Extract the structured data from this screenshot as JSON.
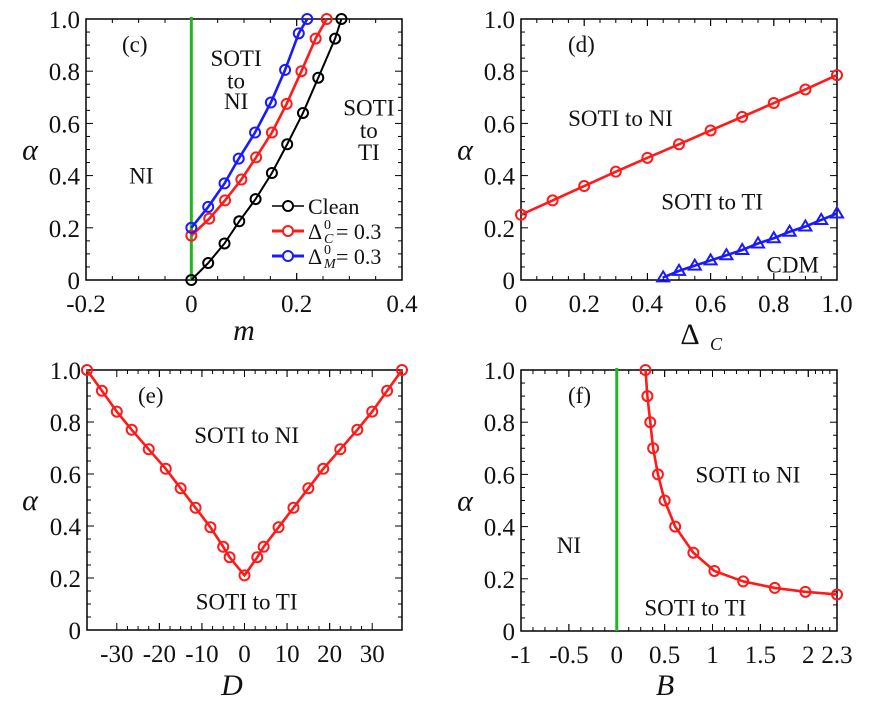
{
  "chart_data": [
    {
      "id": "c",
      "type": "line",
      "panel_label": "(c)",
      "xlabel": "m",
      "ylabel": "α",
      "xlim": [
        -0.2,
        0.4
      ],
      "ylim": [
        0,
        1.0
      ],
      "xticks": [
        -0.2,
        0,
        0.2,
        0.4
      ],
      "xtick_labels": [
        "-0.2",
        "0",
        "0.2",
        "0.4"
      ],
      "yticks": [
        0,
        0.2,
        0.4,
        0.6,
        0.8,
        1.0
      ],
      "ytick_labels": [
        "0",
        "0.2",
        "0.4",
        "0.6",
        "0.8",
        "1.0"
      ],
      "vlines": [
        {
          "x": 0,
          "color": "#22b522"
        }
      ],
      "legend_position": "bottom-right",
      "series": [
        {
          "name": "Clean",
          "legend_main": "Clean",
          "color": "#000000",
          "marker": "circle",
          "x": [
            0,
            0.032,
            0.063,
            0.091,
            0.122,
            0.153,
            0.182,
            0.212,
            0.241,
            0.273,
            0.285
          ],
          "y": [
            0,
            0.065,
            0.14,
            0.225,
            0.31,
            0.41,
            0.52,
            0.64,
            0.775,
            0.925,
            1.0
          ]
        },
        {
          "name": "Δ⁰_C = 0.3",
          "legend_main": "Δ",
          "legend_sup": "0",
          "legend_sub": "C",
          "legend_value": "= 0.3",
          "color": "#ff1a1a",
          "marker": "circle",
          "x": [
            0,
            0.034,
            0.064,
            0.095,
            0.123,
            0.153,
            0.181,
            0.209,
            0.236,
            0.257
          ],
          "y": [
            0.17,
            0.235,
            0.305,
            0.385,
            0.47,
            0.565,
            0.675,
            0.8,
            0.925,
            1.0
          ]
        },
        {
          "name": "Δ⁰_M = 0.3",
          "legend_main": "Δ",
          "legend_sup": "0",
          "legend_sub": "M",
          "legend_value": "= 0.3",
          "color": "#1a1aff",
          "marker": "circle",
          "x": [
            0,
            0.032,
            0.063,
            0.09,
            0.121,
            0.151,
            0.178,
            0.204,
            0.22
          ],
          "y": [
            0.2,
            0.28,
            0.37,
            0.465,
            0.565,
            0.68,
            0.805,
            0.945,
            1.0
          ]
        }
      ],
      "annotations": [
        {
          "text": "NI",
          "x": -0.095,
          "y": 0.4
        },
        {
          "text": "SOTI",
          "x": 0.085,
          "y": 0.85
        },
        {
          "text": "to",
          "x": 0.085,
          "y": 0.765
        },
        {
          "text": "NI",
          "x": 0.085,
          "y": 0.685
        },
        {
          "text": "SOTI",
          "x": 0.337,
          "y": 0.66
        },
        {
          "text": "to",
          "x": 0.337,
          "y": 0.575
        },
        {
          "text": "TI",
          "x": 0.337,
          "y": 0.49
        }
      ]
    },
    {
      "id": "d",
      "type": "line",
      "panel_label": "(d)",
      "xlabel": "Δ",
      "xlabel_sub": "C",
      "ylabel": "α",
      "xlim": [
        0,
        1.0
      ],
      "ylim": [
        0,
        1.0
      ],
      "xticks": [
        0,
        0.2,
        0.4,
        0.6,
        0.8,
        1.0
      ],
      "xtick_labels": [
        "0",
        "0.2",
        "0.4",
        "0.6",
        "0.8",
        "1.0"
      ],
      "yticks": [
        0,
        0.2,
        0.4,
        0.6,
        0.8,
        1.0
      ],
      "ytick_labels": [
        "0",
        "0.2",
        "0.4",
        "0.6",
        "0.8",
        "1.0"
      ],
      "vlines": [],
      "series": [
        {
          "name": "SOTI-NI/TI boundary",
          "color": "#ff1a1a",
          "marker": "circle",
          "x": [
            0,
            0.1,
            0.2,
            0.3,
            0.4,
            0.5,
            0.6,
            0.7,
            0.8,
            0.9,
            1.0
          ],
          "y": [
            0.25,
            0.305,
            0.36,
            0.415,
            0.468,
            0.52,
            0.573,
            0.625,
            0.678,
            0.73,
            0.785
          ]
        },
        {
          "name": "CDM boundary",
          "color": "#1a1aff",
          "marker": "triangle",
          "x": [
            0.45,
            0.5,
            0.55,
            0.6,
            0.65,
            0.7,
            0.75,
            0.8,
            0.85,
            0.9,
            0.95,
            1.0
          ],
          "y": [
            0.01,
            0.035,
            0.055,
            0.075,
            0.095,
            0.115,
            0.14,
            0.16,
            0.185,
            0.205,
            0.23,
            0.255
          ]
        }
      ],
      "annotations": [
        {
          "text": "SOTI to NI",
          "x": 0.315,
          "y": 0.62
        },
        {
          "text": "SOTI to TI",
          "x": 0.605,
          "y": 0.3
        },
        {
          "text": "CDM",
          "x": 0.86,
          "y": 0.06
        }
      ]
    },
    {
      "id": "e",
      "type": "line",
      "panel_label": "(e)",
      "xlabel": "D",
      "ylabel": "α",
      "xlim": [
        -37,
        37
      ],
      "ylim": [
        0,
        1.0
      ],
      "xticks": [
        -30,
        -20,
        -10,
        0,
        10,
        20,
        30
      ],
      "xtick_labels": [
        "-30",
        "-20",
        "-10",
        "0",
        "10",
        "20",
        "30"
      ],
      "yticks": [
        0,
        0.2,
        0.4,
        0.6,
        0.8,
        1.0
      ],
      "ytick_labels": [
        "0",
        "0.2",
        "0.4",
        "0.6",
        "0.8",
        "1.0"
      ],
      "vlines": [],
      "series": [
        {
          "name": "boundary",
          "color": "#ff1a1a",
          "marker": "circle",
          "x": [
            -37,
            -33.5,
            -30,
            -26.5,
            -22.5,
            -18.5,
            -15,
            -11.5,
            -8,
            -5,
            -3.5,
            0,
            3,
            4.5,
            8,
            11.5,
            15,
            18.5,
            22.5,
            26.5,
            30,
            33.5,
            37
          ],
          "y": [
            1.0,
            0.92,
            0.84,
            0.77,
            0.695,
            0.62,
            0.545,
            0.47,
            0.395,
            0.32,
            0.28,
            0.21,
            0.28,
            0.32,
            0.395,
            0.47,
            0.545,
            0.62,
            0.695,
            0.77,
            0.84,
            0.92,
            1.0
          ]
        }
      ],
      "annotations": [
        {
          "text": "SOTI to NI",
          "x": 0.5,
          "y": 0.75
        },
        {
          "text": "SOTI to TI",
          "x": 0.5,
          "y": 0.11
        }
      ]
    },
    {
      "id": "f",
      "type": "line",
      "panel_label": "(f)",
      "xlabel": "B",
      "ylabel": "α",
      "xlim": [
        -1,
        2.3
      ],
      "ylim": [
        0,
        1.0
      ],
      "xticks": [
        -1,
        -0.5,
        0,
        0.5,
        1,
        1.5,
        2,
        2.3
      ],
      "xtick_labels": [
        "-1",
        "-0.5",
        "0",
        "0.5",
        "1",
        "1.5",
        "2",
        "2.3"
      ],
      "yticks": [
        0,
        0.2,
        0.4,
        0.6,
        0.8,
        1.0
      ],
      "ytick_labels": [
        "0",
        "0.2",
        "0.4",
        "0.6",
        "0.8",
        "1.0"
      ],
      "vlines": [
        {
          "x": 0,
          "color": "#22b522"
        }
      ],
      "series": [
        {
          "name": "boundary",
          "color": "#ff1a1a",
          "marker": "circle",
          "x": [
            0.3,
            0.32,
            0.35,
            0.38,
            0.43,
            0.5,
            0.61,
            0.8,
            1.02,
            1.32,
            1.65,
            1.97,
            2.3
          ],
          "y": [
            1.0,
            0.9,
            0.8,
            0.7,
            0.6,
            0.5,
            0.4,
            0.3,
            0.23,
            0.19,
            0.165,
            0.15,
            0.14
          ]
        }
      ],
      "annotations": [
        {
          "text": "NI",
          "x": -0.5,
          "y": 0.33
        },
        {
          "text": "SOTI to NI",
          "x": 1.37,
          "y": 0.6
        },
        {
          "text": "SOTI to TI",
          "x": 0.82,
          "y": 0.09
        }
      ]
    }
  ]
}
